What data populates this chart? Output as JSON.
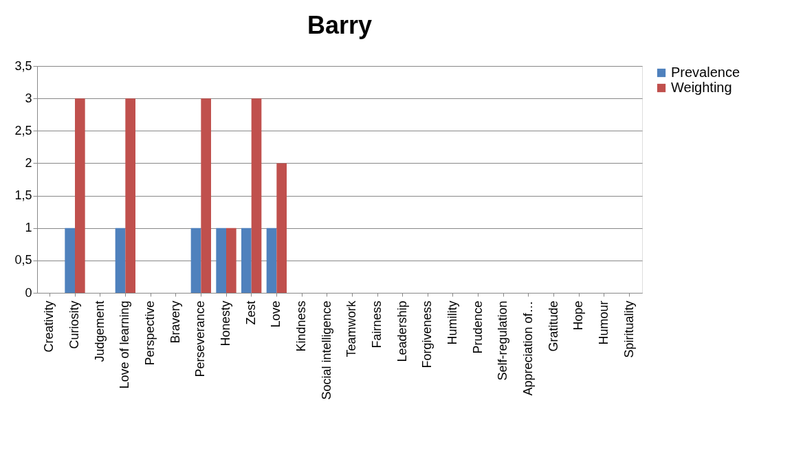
{
  "chart_data": {
    "type": "bar",
    "title": "Barry",
    "categories": [
      "Creativity",
      "Curiosity",
      "Judgement",
      "Love of learning",
      "Perspective",
      "Bravery",
      "Perseverance",
      "Honesty",
      "Zest",
      "Love",
      "Kindness",
      "Social intelligence",
      "Teamwork",
      "Fairness",
      "Leadership",
      "Forgiveness",
      "Humility",
      "Prudence",
      "Self-regulation",
      "Appreciation of…",
      "Gratitude",
      "Hope",
      "Humour",
      "Spirituality"
    ],
    "series": [
      {
        "name": "Prevalence",
        "color": "#4f81bd",
        "values": [
          0,
          1,
          0,
          1,
          0,
          0,
          1,
          1,
          1,
          1,
          0,
          0,
          0,
          0,
          0,
          0,
          0,
          0,
          0,
          0,
          0,
          0,
          0,
          0
        ]
      },
      {
        "name": "Weighting",
        "color": "#c0504d",
        "values": [
          0,
          3,
          0,
          3,
          0,
          0,
          3,
          1,
          3,
          2,
          0,
          0,
          0,
          0,
          0,
          0,
          0,
          0,
          0,
          0,
          0,
          0,
          0,
          0
        ]
      }
    ],
    "ylim": [
      0,
      3.5
    ],
    "yticks": [
      0,
      {
        "value": 0.5,
        "label": "0,5"
      },
      1,
      {
        "value": 1.5,
        "label": "1,5"
      },
      2,
      {
        "value": 2.5,
        "label": "2,5"
      },
      3,
      {
        "value": 3.5,
        "label": "3,5"
      }
    ],
    "grid": "y",
    "legend": "right"
  }
}
